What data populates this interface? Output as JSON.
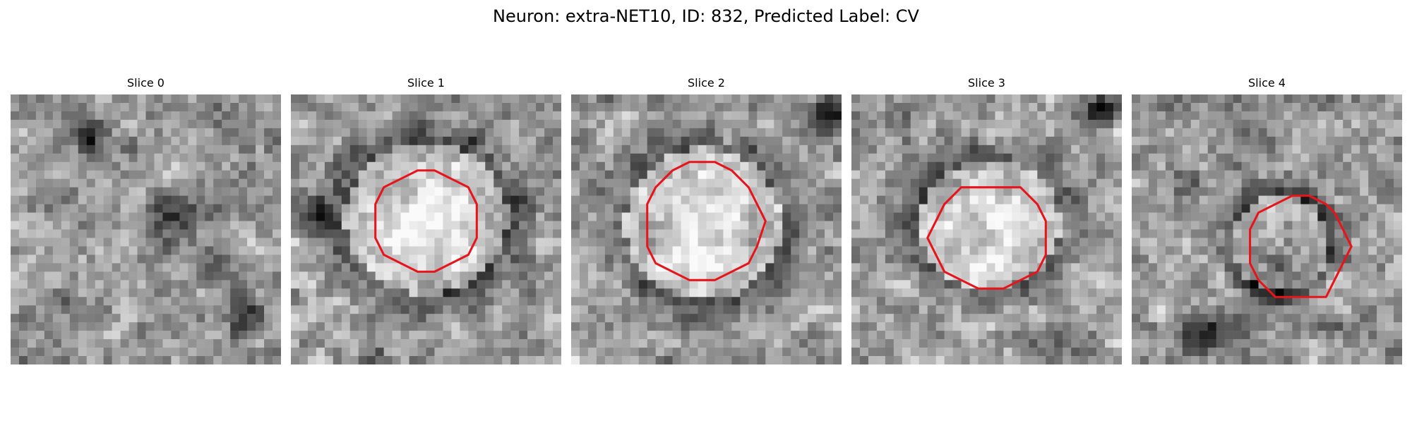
{
  "figure": {
    "title": "Neuron: extra-NET10, ID: 832, Predicted Label: CV"
  },
  "panels": [
    {
      "title": "Slice 0",
      "seed": 11,
      "blob": null,
      "dark": [
        [
          0.62,
          0.45,
          0.16
        ],
        [
          0.28,
          0.18,
          0.12
        ],
        [
          0.85,
          0.82,
          0.12
        ],
        [
          0.75,
          0.65,
          0.09
        ]
      ],
      "contour": null
    },
    {
      "title": "Slice 1",
      "seed": 23,
      "blob": [
        0.5,
        0.46,
        0.3,
        0.28
      ],
      "dark": [
        [
          0.08,
          0.45,
          0.12
        ]
      ],
      "contour": [
        0.5,
        0.47,
        0.37,
        0.37
      ]
    },
    {
      "title": "Slice 2",
      "seed": 37,
      "blob": [
        0.49,
        0.48,
        0.29,
        0.28
      ],
      "dark": [
        [
          0.95,
          0.08,
          0.1
        ]
      ],
      "contour": [
        0.49,
        0.48,
        0.44,
        0.44
      ]
    },
    {
      "title": "Slice 3",
      "seed": 51,
      "blob": [
        0.51,
        0.48,
        0.26,
        0.24
      ],
      "dark": [
        [
          0.92,
          0.05,
          0.1
        ]
      ],
      "contour": [
        0.51,
        0.52,
        0.44,
        0.38
      ]
    },
    {
      "title": "Slice 4",
      "seed": 67,
      "blob": [
        0.55,
        0.55,
        0.18,
        0.18
      ],
      "dark": [
        [
          0.27,
          0.88,
          0.13
        ],
        [
          0.55,
          0.62,
          0.2
        ]
      ],
      "contour": [
        0.62,
        0.57,
        0.37,
        0.39
      ]
    }
  ],
  "colors": {
    "contour": "#e8141c"
  }
}
